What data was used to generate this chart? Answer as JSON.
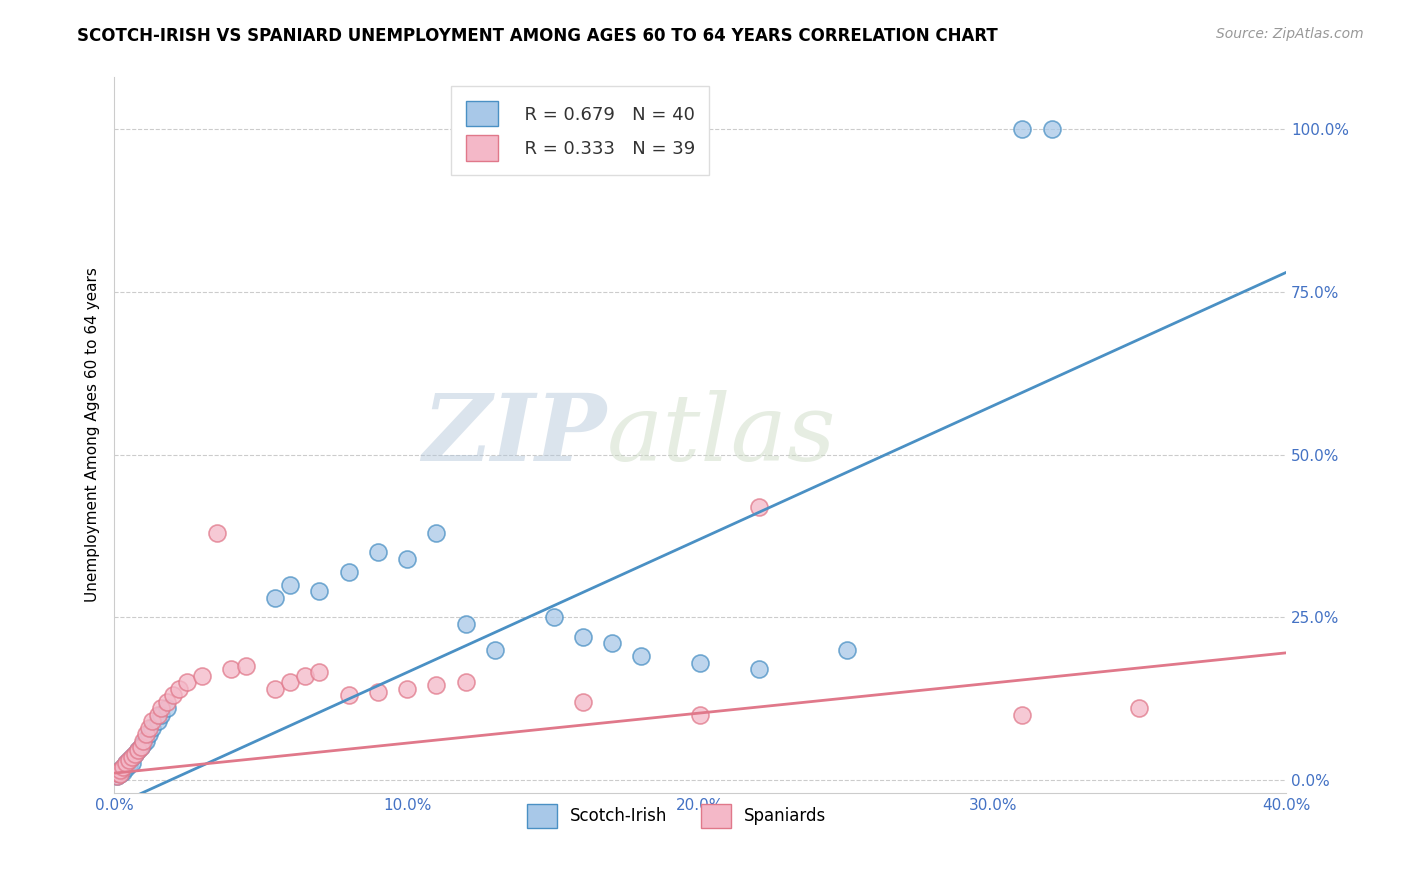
{
  "title": "SCOTCH-IRISH VS SPANIARD UNEMPLOYMENT AMONG AGES 60 TO 64 YEARS CORRELATION CHART",
  "source": "Source: ZipAtlas.com",
  "ylabel": "Unemployment Among Ages 60 to 64 years",
  "xlim": [
    0.0,
    0.4
  ],
  "ylim": [
    -0.02,
    1.08
  ],
  "xticks": [
    0.0,
    0.1,
    0.2,
    0.3,
    0.4
  ],
  "xtick_labels": [
    "0.0%",
    "10.0%",
    "20.0%",
    "30.0%",
    "40.0%"
  ],
  "ytick_labels": [
    "0.0%",
    "25.0%",
    "50.0%",
    "75.0%",
    "100.0%"
  ],
  "yticks": [
    0.0,
    0.25,
    0.5,
    0.75,
    1.0
  ],
  "scotch_irish_color": "#a8c8e8",
  "spaniard_color": "#f4b8c8",
  "scotch_irish_line_color": "#4a90c4",
  "spaniard_line_color": "#e0788a",
  "R_scotch": 0.679,
  "N_scotch": 40,
  "R_spaniard": 0.333,
  "N_spaniard": 39,
  "watermark_zip": "ZIP",
  "watermark_atlas": "atlas",
  "si_line_x0": 0.0,
  "si_line_y0": -0.04,
  "si_line_x1": 0.4,
  "si_line_y1": 0.78,
  "sp_line_x0": 0.0,
  "sp_line_y0": 0.01,
  "sp_line_x1": 0.4,
  "sp_line_y1": 0.195,
  "scotch_irish_x": [
    0.001,
    0.001,
    0.002,
    0.002,
    0.003,
    0.003,
    0.004,
    0.004,
    0.005,
    0.005,
    0.006,
    0.006,
    0.007,
    0.008,
    0.009,
    0.01,
    0.011,
    0.012,
    0.013,
    0.015,
    0.016,
    0.018,
    0.055,
    0.06,
    0.07,
    0.08,
    0.09,
    0.1,
    0.11,
    0.12,
    0.13,
    0.15,
    0.16,
    0.17,
    0.18,
    0.2,
    0.22,
    0.25,
    0.31,
    0.32
  ],
  "scotch_irish_y": [
    0.005,
    0.01,
    0.008,
    0.015,
    0.012,
    0.02,
    0.018,
    0.025,
    0.022,
    0.03,
    0.025,
    0.035,
    0.04,
    0.045,
    0.05,
    0.055,
    0.06,
    0.07,
    0.08,
    0.09,
    0.1,
    0.11,
    0.28,
    0.3,
    0.29,
    0.32,
    0.35,
    0.34,
    0.38,
    0.24,
    0.2,
    0.25,
    0.22,
    0.21,
    0.19,
    0.18,
    0.17,
    0.2,
    1.0,
    1.0
  ],
  "spaniard_x": [
    0.001,
    0.001,
    0.002,
    0.002,
    0.003,
    0.004,
    0.005,
    0.006,
    0.007,
    0.008,
    0.009,
    0.01,
    0.011,
    0.012,
    0.013,
    0.015,
    0.016,
    0.018,
    0.02,
    0.022,
    0.025,
    0.03,
    0.035,
    0.04,
    0.045,
    0.055,
    0.06,
    0.065,
    0.07,
    0.08,
    0.09,
    0.1,
    0.11,
    0.12,
    0.16,
    0.2,
    0.22,
    0.31,
    0.35
  ],
  "spaniard_y": [
    0.005,
    0.01,
    0.008,
    0.015,
    0.02,
    0.025,
    0.03,
    0.035,
    0.04,
    0.045,
    0.05,
    0.06,
    0.07,
    0.08,
    0.09,
    0.1,
    0.11,
    0.12,
    0.13,
    0.14,
    0.15,
    0.16,
    0.38,
    0.17,
    0.175,
    0.14,
    0.15,
    0.16,
    0.165,
    0.13,
    0.135,
    0.14,
    0.145,
    0.15,
    0.12,
    0.1,
    0.42,
    0.1,
    0.11
  ]
}
